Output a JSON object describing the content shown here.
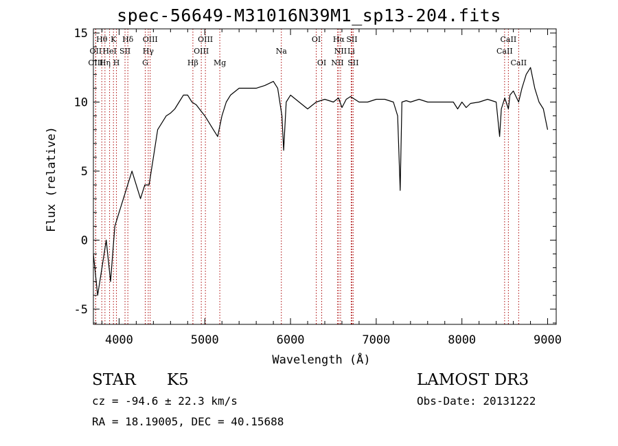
{
  "chart_data": {
    "type": "line",
    "title": "spec-56649-M31016N39M1_sp13-204.fits",
    "xlabel": "Wavelength (Å)",
    "ylabel": "Flux (relative)",
    "xlim": [
      3700,
      9100
    ],
    "ylim": [
      -6.1,
      15.3
    ],
    "x_ticks": [
      4000,
      5000,
      6000,
      7000,
      8000,
      9000
    ],
    "y_ticks": [
      -5,
      0,
      5,
      10,
      15
    ],
    "grid": false,
    "series": [
      {
        "x": [
          3700,
          3750,
          3800,
          3850,
          3900,
          3950,
          4000,
          4050,
          4100,
          4150,
          4200,
          4250,
          4300,
          4350,
          4400,
          4450,
          4500,
          4550,
          4600,
          4650,
          4700,
          4750,
          4800,
          4850,
          4900,
          4950,
          5000,
          5050,
          5100,
          5150,
          5200,
          5250,
          5300,
          5400,
          5500,
          5600,
          5700,
          5800,
          5850,
          5900,
          5920,
          5950,
          6000,
          6100,
          6200,
          6300,
          6400,
          6500,
          6560,
          6600,
          6650,
          6700,
          6800,
          6900,
          7000,
          7100,
          7200,
          7250,
          7280,
          7300,
          7350,
          7400,
          7500,
          7600,
          7700,
          7800,
          7900,
          7950,
          8000,
          8050,
          8100,
          8200,
          8300,
          8400,
          8440,
          8460,
          8500,
          8542,
          8560,
          8600,
          8662,
          8700,
          8750,
          8800,
          8850,
          8900,
          8950,
          9000
        ],
        "y": [
          -1,
          -4,
          -2,
          0,
          -3,
          1,
          2,
          3,
          4,
          5,
          4,
          3,
          4,
          4,
          6,
          8,
          8.5,
          9,
          9.2,
          9.5,
          10,
          10.5,
          10.5,
          10,
          9.8,
          9.4,
          9,
          8.5,
          8,
          7.5,
          9,
          10,
          10.5,
          11,
          11,
          11,
          11.2,
          11.5,
          11,
          9,
          6.5,
          10,
          10.5,
          10,
          9.5,
          10,
          10.2,
          10,
          10.3,
          9.6,
          10.2,
          10.4,
          10,
          10,
          10.2,
          10.2,
          10,
          9,
          3.6,
          10,
          10.1,
          10,
          10.2,
          10,
          10,
          10,
          10,
          9.5,
          10,
          9.6,
          9.9,
          10,
          10.2,
          10,
          7.5,
          9.5,
          10.3,
          9.5,
          10.5,
          10.8,
          10,
          11,
          12,
          12.5,
          11,
          10,
          9.5,
          8
        ]
      }
    ],
    "line_markers": [
      {
        "label": "Hθ",
        "x": 3798,
        "row": 1
      },
      {
        "label": "K",
        "x": 3934,
        "row": 1
      },
      {
        "label": "Hδ",
        "x": 4102,
        "row": 1
      },
      {
        "label": "OIII",
        "x": 4363,
        "row": 1
      },
      {
        "label": "OIII",
        "x": 5007,
        "row": 1
      },
      {
        "label": "OI",
        "x": 6300,
        "row": 1
      },
      {
        "label": "Hα",
        "x": 6563,
        "row": 1
      },
      {
        "label": "SII",
        "x": 6716,
        "row": 1
      },
      {
        "label": "CaII",
        "x": 8542,
        "row": 1
      },
      {
        "label": "OII",
        "x": 3727,
        "row": 2
      },
      {
        "label": "HeI",
        "x": 3889,
        "row": 2
      },
      {
        "label": "SII",
        "x": 4069,
        "row": 2
      },
      {
        "label": "Hγ",
        "x": 4340,
        "row": 2
      },
      {
        "label": "OIII",
        "x": 4959,
        "row": 2
      },
      {
        "label": "Na",
        "x": 5893,
        "row": 2
      },
      {
        "label": "NII",
        "x": 6584,
        "row": 2
      },
      {
        "label": "Li",
        "x": 6708,
        "row": 2
      },
      {
        "label": "CaII",
        "x": 8498,
        "row": 2
      },
      {
        "label": "OIII",
        "x": 3727,
        "row": 3
      },
      {
        "label": "Hη",
        "x": 3835,
        "row": 3
      },
      {
        "label": "H",
        "x": 3969,
        "row": 3
      },
      {
        "label": "G",
        "x": 4305,
        "row": 3
      },
      {
        "label": "Hβ",
        "x": 4861,
        "row": 3
      },
      {
        "label": "Mg",
        "x": 5175,
        "row": 3
      },
      {
        "label": "OI",
        "x": 6364,
        "row": 3
      },
      {
        "label": "NII",
        "x": 6548,
        "row": 3
      },
      {
        "label": "SII",
        "x": 6731,
        "row": 3
      },
      {
        "label": "CaII",
        "x": 8662,
        "row": 3
      }
    ],
    "marker_line_color": "#aa0000",
    "line_color": "#000000"
  },
  "info": {
    "object_class": "STAR",
    "subclass": "K5",
    "survey": "LAMOST DR3",
    "redshift": "cz = -94.6 ± 22.3 km/s",
    "obs_date": "Obs-Date: 20131222",
    "coords": "RA =  18.19005, DEC =  40.15688"
  }
}
